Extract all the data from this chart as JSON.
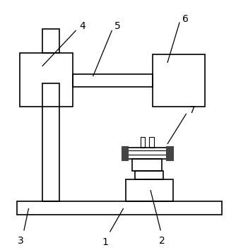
{
  "bg_color": "#ffffff",
  "line_color": "#000000",
  "lw": 1.2,
  "thin_lw": 0.8,
  "label_fontsize": 10
}
